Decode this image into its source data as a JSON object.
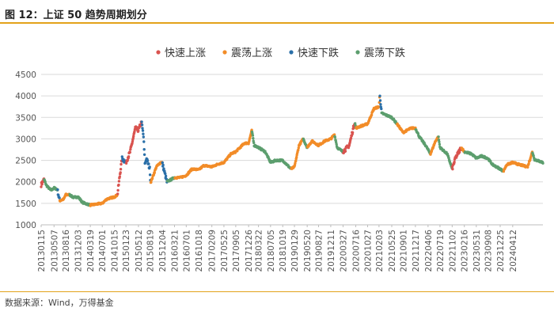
{
  "figure": {
    "title": "图 12：上证 50 趋势周期划分",
    "source": "数据来源：Wind，万得基金"
  },
  "chart_data": {
    "type": "scatter",
    "title": "",
    "xlabel": "",
    "ylabel": "",
    "ylim": [
      1000,
      4500
    ],
    "yticks": [
      1000,
      1500,
      2000,
      2500,
      3000,
      3500,
      4000,
      4500
    ],
    "xlim": [
      "2013-01-15",
      "2024-12-31"
    ],
    "xticks": [
      "20130115",
      "20130507",
      "20130816",
      "20131203",
      "20140319",
      "20140701",
      "20141015",
      "20150123",
      "20150512",
      "20150819",
      "20151204",
      "20160321",
      "20160701",
      "20161018",
      "20170209",
      "20170525",
      "20170905",
      "20171226",
      "20180322",
      "20180705",
      "20181019",
      "20190129",
      "20190520",
      "20190827",
      "20191211",
      "20200327",
      "20200716",
      "20201027",
      "20210203",
      "20210525",
      "20210901",
      "20211217",
      "20220406",
      "20220719",
      "20221102",
      "20230216",
      "20230531",
      "20230908",
      "20231225",
      "20240412"
    ],
    "grid": "y",
    "legend_position": "top",
    "regime_colors": {
      "快速上涨": "#D9534F",
      "震荡上涨": "#F28C28",
      "快速下跌": "#2A6FA8",
      "震荡下跌": "#5C9E6E"
    },
    "series": [
      {
        "name": "快速上涨"
      },
      {
        "name": "震荡上涨"
      },
      {
        "name": "快速下跌"
      },
      {
        "name": "震荡下跌"
      }
    ],
    "trend_points": [
      [
        "2013-01-15",
        1930
      ],
      [
        "2013-02-10",
        2060
      ],
      [
        "2013-03-01",
        1920
      ],
      [
        "2013-04-10",
        1800
      ],
      [
        "2013-05-07",
        1860
      ],
      [
        "2013-06-05",
        1820
      ],
      [
        "2013-06-25",
        1560
      ],
      [
        "2013-08-01",
        1600
      ],
      [
        "2013-08-16",
        1700
      ],
      [
        "2013-09-20",
        1700
      ],
      [
        "2013-10-20",
        1640
      ],
      [
        "2013-12-03",
        1650
      ],
      [
        "2014-01-10",
        1520
      ],
      [
        "2014-03-19",
        1460
      ],
      [
        "2014-05-10",
        1480
      ],
      [
        "2014-07-01",
        1500
      ],
      [
        "2014-08-10",
        1600
      ],
      [
        "2014-10-15",
        1650
      ],
      [
        "2014-11-10",
        1700
      ],
      [
        "2014-12-01",
        2150
      ],
      [
        "2014-12-20",
        2550
      ],
      [
        "2015-01-23",
        2450
      ],
      [
        "2015-03-01",
        2700
      ],
      [
        "2015-04-15",
        3250
      ],
      [
        "2015-05-12",
        3200
      ],
      [
        "2015-06-08",
        3400
      ],
      [
        "2015-06-25",
        3050
      ],
      [
        "2015-07-08",
        2400
      ],
      [
        "2015-07-20",
        2550
      ],
      [
        "2015-08-19",
        2300
      ],
      [
        "2015-08-26",
        1980
      ],
      [
        "2015-10-15",
        2350
      ],
      [
        "2015-11-20",
        2450
      ],
      [
        "2015-12-04",
        2450
      ],
      [
        "2016-01-15",
        2000
      ],
      [
        "2016-03-21",
        2100
      ],
      [
        "2016-05-10",
        2100
      ],
      [
        "2016-07-01",
        2150
      ],
      [
        "2016-08-20",
        2300
      ],
      [
        "2016-10-18",
        2280
      ],
      [
        "2016-12-01",
        2380
      ],
      [
        "2017-02-09",
        2350
      ],
      [
        "2017-04-10",
        2420
      ],
      [
        "2017-05-25",
        2450
      ],
      [
        "2017-07-25",
        2650
      ],
      [
        "2017-09-05",
        2700
      ],
      [
        "2017-11-20",
        2900
      ],
      [
        "2017-12-26",
        2900
      ],
      [
        "2018-01-23",
        3200
      ],
      [
        "2018-02-12",
        2850
      ],
      [
        "2018-03-22",
        2800
      ],
      [
        "2018-05-20",
        2700
      ],
      [
        "2018-07-05",
        2450
      ],
      [
        "2018-08-20",
        2500
      ],
      [
        "2018-10-19",
        2500
      ],
      [
        "2018-12-31",
        2300
      ],
      [
        "2019-01-29",
        2350
      ],
      [
        "2019-03-10",
        2850
      ],
      [
        "2019-04-15",
        3000
      ],
      [
        "2019-05-20",
        2800
      ],
      [
        "2019-07-01",
        2950
      ],
      [
        "2019-08-27",
        2850
      ],
      [
        "2019-10-20",
        2950
      ],
      [
        "2019-12-11",
        3000
      ],
      [
        "2020-01-13",
        3100
      ],
      [
        "2020-02-05",
        2800
      ],
      [
        "2020-03-27",
        2700
      ],
      [
        "2020-05-20",
        2850
      ],
      [
        "2020-07-08",
        3400
      ],
      [
        "2020-07-16",
        3250
      ],
      [
        "2020-09-01",
        3300
      ],
      [
        "2020-10-27",
        3350
      ],
      [
        "2020-12-20",
        3700
      ],
      [
        "2021-02-03",
        3750
      ],
      [
        "2021-02-10",
        4050
      ],
      [
        "2021-02-25",
        3600
      ],
      [
        "2021-04-10",
        3550
      ],
      [
        "2021-05-25",
        3500
      ],
      [
        "2021-07-10",
        3350
      ],
      [
        "2021-09-01",
        3150
      ],
      [
        "2021-11-10",
        3250
      ],
      [
        "2021-12-17",
        3250
      ],
      [
        "2022-01-20",
        3050
      ],
      [
        "2022-03-15",
        2850
      ],
      [
        "2022-04-06",
        2750
      ],
      [
        "2022-04-27",
        2650
      ],
      [
        "2022-06-10",
        2950
      ],
      [
        "2022-07-05",
        3050
      ],
      [
        "2022-07-19",
        2800
      ],
      [
        "2022-09-20",
        2650
      ],
      [
        "2022-11-02",
        2300
      ],
      [
        "2022-11-30",
        2550
      ],
      [
        "2023-01-20",
        2800
      ],
      [
        "2023-02-16",
        2700
      ],
      [
        "2023-04-20",
        2650
      ],
      [
        "2023-05-31",
        2550
      ],
      [
        "2023-07-15",
        2600
      ],
      [
        "2023-09-08",
        2550
      ],
      [
        "2023-10-20",
        2400
      ],
      [
        "2023-12-25",
        2300
      ],
      [
        "2024-01-22",
        2250
      ],
      [
        "2024-02-20",
        2400
      ],
      [
        "2024-04-12",
        2450
      ],
      [
        "2024-06-10",
        2400
      ],
      [
        "2024-08-20",
        2350
      ],
      [
        "2024-09-30",
        2700
      ],
      [
        "2024-10-20",
        2520
      ],
      [
        "2024-12-31",
        2450
      ]
    ],
    "regimes": [
      [
        "2013-01-15",
        "2013-02-10",
        "快速上涨"
      ],
      [
        "2013-02-10",
        "2013-06-05",
        "震荡下跌"
      ],
      [
        "2013-06-05",
        "2013-06-25",
        "快速下跌"
      ],
      [
        "2013-06-25",
        "2013-09-20",
        "震荡上涨"
      ],
      [
        "2013-09-20",
        "2014-03-19",
        "震荡下跌"
      ],
      [
        "2014-03-19",
        "2014-11-10",
        "震荡上涨"
      ],
      [
        "2014-11-10",
        "2014-12-20",
        "快速上涨"
      ],
      [
        "2014-12-20",
        "2015-01-23",
        "快速下跌"
      ],
      [
        "2015-01-23",
        "2015-06-08",
        "快速上涨"
      ],
      [
        "2015-06-08",
        "2015-08-26",
        "快速下跌"
      ],
      [
        "2015-08-26",
        "2015-12-04",
        "震荡上涨"
      ],
      [
        "2015-12-04",
        "2016-01-15",
        "快速下跌"
      ],
      [
        "2016-01-15",
        "2016-03-21",
        "震荡下跌"
      ],
      [
        "2016-03-21",
        "2018-01-23",
        "震荡上涨"
      ],
      [
        "2018-01-23",
        "2018-12-31",
        "震荡下跌"
      ],
      [
        "2018-12-31",
        "2019-04-15",
        "震荡上涨"
      ],
      [
        "2019-04-15",
        "2019-05-20",
        "震荡下跌"
      ],
      [
        "2019-05-20",
        "2020-01-13",
        "震荡上涨"
      ],
      [
        "2020-01-13",
        "2020-03-27",
        "震荡下跌"
      ],
      [
        "2020-03-27",
        "2020-07-08",
        "快速上涨"
      ],
      [
        "2020-07-08",
        "2020-07-16",
        "震荡下跌"
      ],
      [
        "2020-07-16",
        "2021-02-10",
        "震荡上涨"
      ],
      [
        "2021-02-10",
        "2021-02-25",
        "快速下跌"
      ],
      [
        "2021-02-25",
        "2021-07-10",
        "震荡下跌"
      ],
      [
        "2021-07-10",
        "2021-12-17",
        "震荡上涨"
      ],
      [
        "2021-12-17",
        "2022-04-27",
        "震荡下跌"
      ],
      [
        "2022-04-27",
        "2022-07-05",
        "震荡上涨"
      ],
      [
        "2022-07-05",
        "2022-11-02",
        "震荡下跌"
      ],
      [
        "2022-11-02",
        "2023-01-20",
        "快速上涨"
      ],
      [
        "2023-01-20",
        "2023-02-16",
        "震荡上涨"
      ],
      [
        "2023-02-16",
        "2024-01-22",
        "震荡下跌"
      ],
      [
        "2024-01-22",
        "2024-09-30",
        "震荡上涨"
      ],
      [
        "2024-09-30",
        "2024-12-31",
        "震荡下跌"
      ]
    ]
  }
}
